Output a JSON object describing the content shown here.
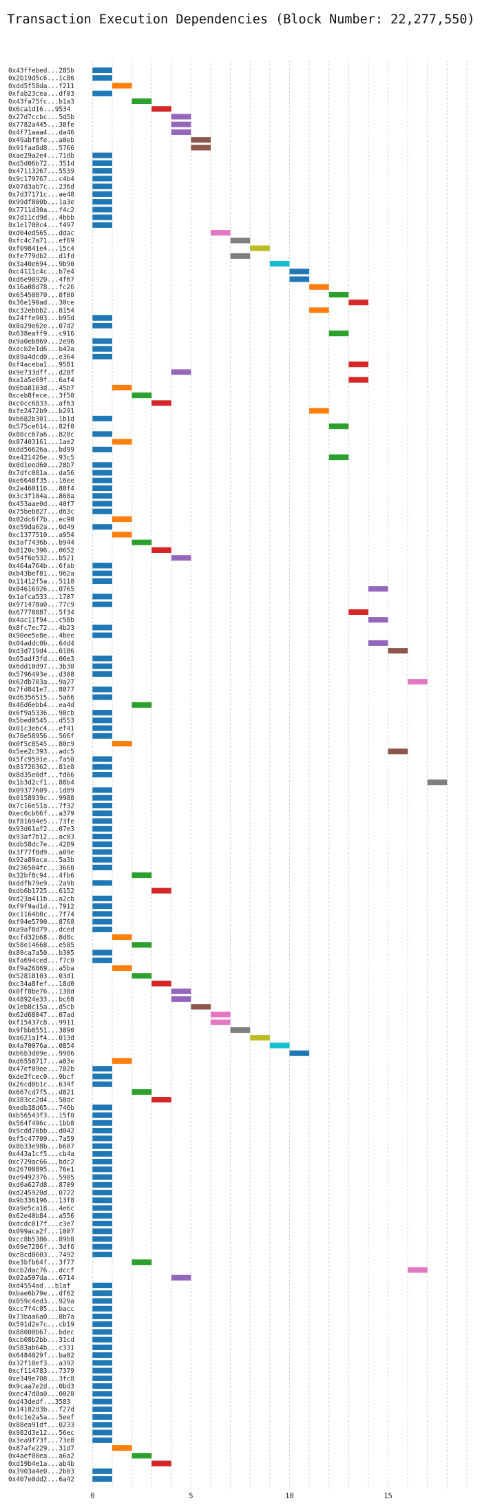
{
  "chart_data": {
    "type": "bar",
    "orientation": "horizontal",
    "title": "Transaction Execution Dependencies (Block Number: 22,277,550)",
    "xlabel": "",
    "ylabel": "",
    "xlim": [
      -0.5,
      19
    ],
    "xticks": [
      0,
      5,
      10,
      15
    ],
    "grid": true,
    "colors": [
      "#1f77b4",
      "#ff7f0e",
      "#2ca02c",
      "#d62728",
      "#9467bd",
      "#8c564b",
      "#e377c2",
      "#7f7f7f",
      "#bcbd22",
      "#17becf"
    ],
    "transactions": [
      {
        "label": "0x43ffebed...285b",
        "start": 0
      },
      {
        "label": "0x2b19d5c6...1c86",
        "start": 0
      },
      {
        "label": "0xdd5f58da...f211",
        "start": 1
      },
      {
        "label": "0xfab23cea...df03",
        "start": 0
      },
      {
        "label": "0x43fa75fc...b1a3",
        "start": 2
      },
      {
        "label": "0x6ca1d16...9534",
        "start": 3
      },
      {
        "label": "0x27d7ccbc...5d5b",
        "start": 4
      },
      {
        "label": "0x7782a445...38fe",
        "start": 4
      },
      {
        "label": "0x4f71aaa4...da46",
        "start": 4
      },
      {
        "label": "0x49abf8fe...a0eb",
        "start": 5
      },
      {
        "label": "0x91faa8d8...5766",
        "start": 5
      },
      {
        "label": "0xae29a2e4...71db",
        "start": 0
      },
      {
        "label": "0xd5d06b72...351d",
        "start": 0
      },
      {
        "label": "0x47113267...5539",
        "start": 0
      },
      {
        "label": "0x9c179767...c4b4",
        "start": 0
      },
      {
        "label": "0x07d3ab7c...236d",
        "start": 0
      },
      {
        "label": "0x7d37171c...ae48",
        "start": 0
      },
      {
        "label": "0x99df800b...1a3e",
        "start": 0
      },
      {
        "label": "0x7711d30a...f4c2",
        "start": 0
      },
      {
        "label": "0x7d11cd9d...4bbb",
        "start": 0
      },
      {
        "label": "0x1e1700c4...f497",
        "start": 0
      },
      {
        "label": "0xd04ed565...ddac",
        "start": 6
      },
      {
        "label": "0xfc4c7a71...ef69",
        "start": 7
      },
      {
        "label": "0xf09841e4...15c4",
        "start": 8
      },
      {
        "label": "0xfe779db2...d1fd",
        "start": 7
      },
      {
        "label": "0x3a40e694...9b90",
        "start": 9
      },
      {
        "label": "0xc4111c4c...b7e4",
        "start": 10
      },
      {
        "label": "0xd6e90920...4f67",
        "start": 10
      },
      {
        "label": "0x16a08d78...fc26",
        "start": 11
      },
      {
        "label": "0x65450870...8f80",
        "start": 12
      },
      {
        "label": "0x36e190ad...30ce",
        "start": 13
      },
      {
        "label": "0xc32ebbb2...8154",
        "start": 11
      },
      {
        "label": "0x24ffe903...b95d",
        "start": 0
      },
      {
        "label": "0x0a29e62e...07d2",
        "start": 0
      },
      {
        "label": "0x638eaff9...c916",
        "start": 12
      },
      {
        "label": "0x9a0eb869...2e96",
        "start": 0
      },
      {
        "label": "0xdcb2e1d6...b42a",
        "start": 0
      },
      {
        "label": "0x89a4dcd0...e364",
        "start": 0
      },
      {
        "label": "0xf4aceba1...9581",
        "start": 13
      },
      {
        "label": "0x9e733dff...d28f",
        "start": 4
      },
      {
        "label": "0xa1a5e69f...6af4",
        "start": 13
      },
      {
        "label": "0x6ba8103d...45b7",
        "start": 1
      },
      {
        "label": "0xceb8fece...3f50",
        "start": 2
      },
      {
        "label": "0xc0cc6833...af63",
        "start": 3
      },
      {
        "label": "0xfe2472b9...b291",
        "start": 11
      },
      {
        "label": "0xb682b301...1b1d",
        "start": 0
      },
      {
        "label": "0x575ce614...82f0",
        "start": 12
      },
      {
        "label": "0x80cc67a6...828c",
        "start": 0
      },
      {
        "label": "0x87403161...1ae2",
        "start": 1
      },
      {
        "label": "0xdd56626a...bd99",
        "start": 0
      },
      {
        "label": "0xe421426e...93c5",
        "start": 12
      },
      {
        "label": "0x0d1eed60...28b7",
        "start": 0
      },
      {
        "label": "0x7dfc081a...da56",
        "start": 0
      },
      {
        "label": "0xe6648f35...16ee",
        "start": 0
      },
      {
        "label": "0x2a460116...80f4",
        "start": 0
      },
      {
        "label": "0x3c3f104a...868a",
        "start": 0
      },
      {
        "label": "0x453aae0d...40f7",
        "start": 0
      },
      {
        "label": "0x75beb827...d63c",
        "start": 0
      },
      {
        "label": "0x02dc6f7b...ec90",
        "start": 1
      },
      {
        "label": "0xe59da62a...0d49",
        "start": 0
      },
      {
        "label": "0xc1377510...a954",
        "start": 1
      },
      {
        "label": "0x3af7436b...b944",
        "start": 2
      },
      {
        "label": "0x8120c396...0652",
        "start": 3
      },
      {
        "label": "0x54f6e532...b521",
        "start": 4
      },
      {
        "label": "0x464a764b...6fab",
        "start": 0
      },
      {
        "label": "0xb43bef81...962a",
        "start": 0
      },
      {
        "label": "0x11412f5a...5118",
        "start": 0
      },
      {
        "label": "0x04616926...0765",
        "start": 14
      },
      {
        "label": "0x1afca533...1707",
        "start": 0
      },
      {
        "label": "0x971478a0...77c9",
        "start": 0
      },
      {
        "label": "0x67778887...5f34",
        "start": 13
      },
      {
        "label": "0x4ac11f94...c58b",
        "start": 14
      },
      {
        "label": "0x8fc7ec72...4b23",
        "start": 0
      },
      {
        "label": "0x90ee5e8e...4bee",
        "start": 0
      },
      {
        "label": "0x04addc0b...64d4",
        "start": 14
      },
      {
        "label": "0xd3d719d4...0186",
        "start": 15
      },
      {
        "label": "0x65adf3fd...06e3",
        "start": 0
      },
      {
        "label": "0x6dd10d97...3b30",
        "start": 0
      },
      {
        "label": "0x5796493e...d308",
        "start": 0
      },
      {
        "label": "0x62db703a...9a27",
        "start": 16
      },
      {
        "label": "0x7fd841e7...8077",
        "start": 0
      },
      {
        "label": "0xd6356515...5a66",
        "start": 0
      },
      {
        "label": "0x46d6ebb4...ea4d",
        "start": 2
      },
      {
        "label": "0x6f9a5336...98cb",
        "start": 0
      },
      {
        "label": "0x5bed0545...d553",
        "start": 0
      },
      {
        "label": "0x01c3e6c4...ef41",
        "start": 0
      },
      {
        "label": "0x70e58956...566f",
        "start": 0
      },
      {
        "label": "0x0f5c8545...80c9",
        "start": 1
      },
      {
        "label": "0x5ee2c393...adc5",
        "start": 15
      },
      {
        "label": "0x5fc9591e...fa50",
        "start": 0
      },
      {
        "label": "0x81726362...81e8",
        "start": 0
      },
      {
        "label": "0x8d35e0df...fd66",
        "start": 0
      },
      {
        "label": "0x1b3d2cf1...88b4",
        "start": 17
      },
      {
        "label": "0x09377609...1d89",
        "start": 0
      },
      {
        "label": "0x0158939c...9988",
        "start": 0
      },
      {
        "label": "0x7c16e51a...7f32",
        "start": 0
      },
      {
        "label": "0xec0cb66f...a379",
        "start": 0
      },
      {
        "label": "0xf81694e5...73fe",
        "start": 0
      },
      {
        "label": "0x93d61af2...07e3",
        "start": 0
      },
      {
        "label": "0x93af7b12...ac03",
        "start": 0
      },
      {
        "label": "0xdb58dc7e...4289",
        "start": 0
      },
      {
        "label": "0x3f77f8d9...a09e",
        "start": 0
      },
      {
        "label": "0x92a89aca...5a3b",
        "start": 0
      },
      {
        "label": "0x236504fc...3660",
        "start": 0
      },
      {
        "label": "0x32bf8c94...4fb6",
        "start": 2
      },
      {
        "label": "0xddfb79e9...2a9b",
        "start": 0
      },
      {
        "label": "0xdb6b1725...6152",
        "start": 3
      },
      {
        "label": "0xd23a411b...a2cb",
        "start": 0
      },
      {
        "label": "0xf9f9ad1d...7912",
        "start": 0
      },
      {
        "label": "0xc1164b8c...7f74",
        "start": 0
      },
      {
        "label": "0xf94e5790...8768",
        "start": 0
      },
      {
        "label": "0xa9af8d79...dced",
        "start": 0
      },
      {
        "label": "0xcfd32b68...8d8c",
        "start": 1
      },
      {
        "label": "0x58e14668...e585",
        "start": 2
      },
      {
        "label": "0x89ca7a50...b305",
        "start": 0
      },
      {
        "label": "0xfa694ced...f7c0",
        "start": 0
      },
      {
        "label": "0xf9a26869...a5ba",
        "start": 1
      },
      {
        "label": "0x52818103...03d1",
        "start": 2
      },
      {
        "label": "0xc34a8fef...18d0",
        "start": 3
      },
      {
        "label": "0x0ff8be76...138d",
        "start": 4
      },
      {
        "label": "0x48924e33...bc68",
        "start": 4
      },
      {
        "label": "0x1eb8c15a...d5cb",
        "start": 5
      },
      {
        "label": "0x62d68047...07ad",
        "start": 6
      },
      {
        "label": "0xf15437c8...9911",
        "start": 6
      },
      {
        "label": "0x9fbb8551...3890",
        "start": 7
      },
      {
        "label": "0xa621a1f4...013d",
        "start": 8
      },
      {
        "label": "0x4a70076a...0854",
        "start": 9
      },
      {
        "label": "0xb6b3d09e...9986",
        "start": 10
      },
      {
        "label": "0xd6558717...a83e",
        "start": 1
      },
      {
        "label": "0x47ef09ee...782b",
        "start": 0
      },
      {
        "label": "0xde2fcec0...9bcf",
        "start": 0
      },
      {
        "label": "0x26cd0b1c...634f",
        "start": 0
      },
      {
        "label": "0x667cd7f5...d821",
        "start": 2
      },
      {
        "label": "0x383cc2d4...50dc",
        "start": 3
      },
      {
        "label": "0xedb38d65...746b",
        "start": 0
      },
      {
        "label": "0xb56543f3...15f0",
        "start": 0
      },
      {
        "label": "0x564f496c...1bb8",
        "start": 0
      },
      {
        "label": "0x9cdd70bb...d042",
        "start": 0
      },
      {
        "label": "0xf5c47709...7a59",
        "start": 0
      },
      {
        "label": "0x8b33e98b...b607",
        "start": 0
      },
      {
        "label": "0x443a1cf5...cb4a",
        "start": 0
      },
      {
        "label": "0xc729ac66...bdc2",
        "start": 0
      },
      {
        "label": "0x26700895...76e1",
        "start": 0
      },
      {
        "label": "0xe9492376...5905",
        "start": 0
      },
      {
        "label": "0xd0a627d8...8709",
        "start": 0
      },
      {
        "label": "0xd245920d...0722",
        "start": 0
      },
      {
        "label": "0x9b336196...13f8",
        "start": 0
      },
      {
        "label": "0xa9e5ca18...4e6c",
        "start": 0
      },
      {
        "label": "0x62e40b84...a556",
        "start": 0
      },
      {
        "label": "0xdcdc017f...c3e7",
        "start": 0
      },
      {
        "label": "0x099aca2f...1007",
        "start": 0
      },
      {
        "label": "0xcc8b5386...89b8",
        "start": 0
      },
      {
        "label": "0x69e7286f...3df6",
        "start": 0
      },
      {
        "label": "0xc8cd8603...7492",
        "start": 0
      },
      {
        "label": "0xe3bfb64f...3f77",
        "start": 2
      },
      {
        "label": "0xcb2dac76...dccf",
        "start": 16
      },
      {
        "label": "0x02a507da...6714",
        "start": 4
      },
      {
        "label": "0xd4554ad...b1af",
        "start": 0
      },
      {
        "label": "0xbae6b79e...df62",
        "start": 0
      },
      {
        "label": "0x059c4ed3...929a",
        "start": 0
      },
      {
        "label": "0xcc7f4c05...bacc",
        "start": 0
      },
      {
        "label": "0x73baa6a0...8b7a",
        "start": 0
      },
      {
        "label": "0x591d2e7c...cb19",
        "start": 0
      },
      {
        "label": "0x88000b67...bdec",
        "start": 0
      },
      {
        "label": "0xcb08b2bb...31cd",
        "start": 0
      },
      {
        "label": "0x583ab64b...c331",
        "start": 0
      },
      {
        "label": "0x6484029f...ba82",
        "start": 0
      },
      {
        "label": "0x32f10ef3...a392",
        "start": 0
      },
      {
        "label": "0xcf114783...7379",
        "start": 0
      },
      {
        "label": "0xe349e708...3fc8",
        "start": 0
      },
      {
        "label": "0x9caa7e2d...0bd3",
        "start": 0
      },
      {
        "label": "0xec47d8a0...0028",
        "start": 0
      },
      {
        "label": "0xd43dedf...3583",
        "start": 0
      },
      {
        "label": "0x14182d3b...f27d",
        "start": 0
      },
      {
        "label": "0x4c1e2a5a...5eef",
        "start": 0
      },
      {
        "label": "0x88ea91df...0233",
        "start": 0
      },
      {
        "label": "0x982d3e12...56ec",
        "start": 0
      },
      {
        "label": "0x3ea9f73f...73e8",
        "start": 0
      },
      {
        "label": "0x87afe229...31d7",
        "start": 1
      },
      {
        "label": "0x4aef00ea...a6a2",
        "start": 2
      },
      {
        "label": "0xd19b4e1a...ab4b",
        "start": 3
      },
      {
        "label": "0x3903a4e0...2b03",
        "start": 0
      },
      {
        "label": "0x407e0dd2...6a42",
        "start": 0
      }
    ]
  }
}
